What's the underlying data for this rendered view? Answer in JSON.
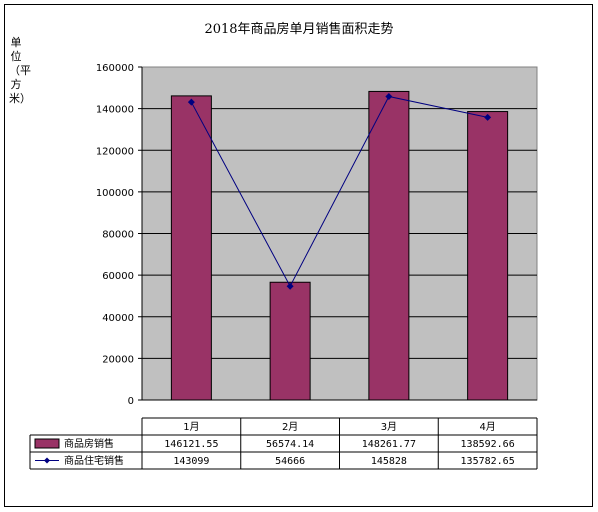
{
  "chart_data": {
    "type": "bar",
    "title": "2018年商品房单月销售面积走势",
    "ylabel": "单位（平方米）",
    "xlabel": "",
    "categories": [
      "1月",
      "2月",
      "3月",
      "4月"
    ],
    "ylim": [
      0,
      160000
    ],
    "yticks": [
      0,
      20000,
      40000,
      60000,
      80000,
      100000,
      120000,
      140000,
      160000
    ],
    "grid": true,
    "legend": "bottom-table",
    "series": [
      {
        "name": "商品房销售",
        "type": "bar",
        "color": "#993366",
        "values": [
          146121.55,
          56574.14,
          148261.77,
          138592.66
        ],
        "labels": [
          "146121.55",
          "56574.14",
          "148261.77",
          "138592.66"
        ]
      },
      {
        "name": "商品住宅销售",
        "type": "line",
        "color": "#000080",
        "values": [
          143099,
          54666,
          145828,
          135782.65
        ],
        "labels": [
          "143099",
          "54666",
          "145828",
          "135782.65"
        ]
      }
    ]
  }
}
